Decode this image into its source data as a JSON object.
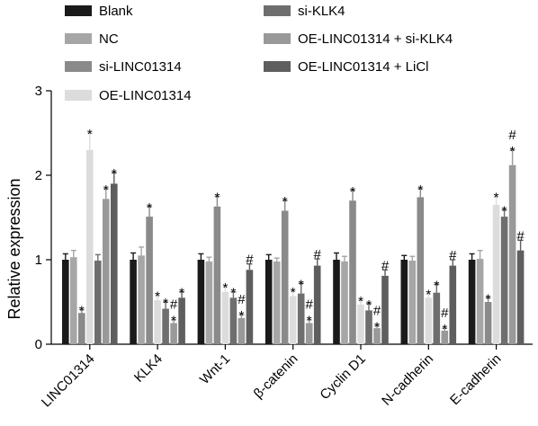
{
  "chart_data": {
    "type": "bar",
    "ylabel": "Relative expression",
    "ylim": [
      0,
      3
    ],
    "yticks": [
      "0",
      "1",
      "2",
      "3"
    ],
    "categories": [
      "LINC01314",
      "KLK4",
      "Wnt-1",
      "β-catenin",
      "Cyclin D1",
      "N-cadherin",
      "E-cadherin"
    ],
    "series": [
      {
        "name": "Blank",
        "color": "#1a1a1a",
        "values": [
          1.0,
          1.0,
          1.0,
          1.0,
          1.0,
          1.0,
          1.0
        ],
        "errors": [
          0.07,
          0.08,
          0.07,
          0.06,
          0.08,
          0.05,
          0.07
        ],
        "marks": [
          "",
          "",
          "",
          "",
          "",
          "",
          ""
        ]
      },
      {
        "name": "NC",
        "color": "#a6a6a6",
        "values": [
          1.03,
          1.05,
          0.98,
          0.98,
          0.98,
          0.99,
          1.01
        ],
        "errors": [
          0.08,
          0.1,
          0.05,
          0.04,
          0.06,
          0.05,
          0.1
        ],
        "marks": [
          "",
          "",
          "",
          "",
          "",
          "",
          ""
        ]
      },
      {
        "name": "si-LINC01314",
        "color": "#8a8a8a",
        "values": [
          0.37,
          1.51,
          1.63,
          1.58,
          1.7,
          1.74,
          0.5
        ],
        "errors": [
          0.04,
          0.12,
          0.12,
          0.12,
          0.12,
          0.1,
          0.05
        ],
        "marks": [
          "*",
          "*",
          "*",
          "*",
          "*",
          "*",
          "*"
        ]
      },
      {
        "name": "OE-LINC01314",
        "color": "#dcdcdc",
        "values": [
          2.3,
          0.52,
          0.62,
          0.57,
          0.47,
          0.55,
          1.65
        ],
        "errors": [
          0.2,
          0.06,
          0.06,
          0.06,
          0.05,
          0.05,
          0.1
        ],
        "marks": [
          "*",
          "*",
          "*",
          "*",
          "*",
          "*",
          "*"
        ]
      },
      {
        "name": "si-KLK4",
        "color": "#6e6e6e",
        "values": [
          0.99,
          0.42,
          0.55,
          0.6,
          0.4,
          0.61,
          1.51
        ],
        "errors": [
          0.07,
          0.08,
          0.07,
          0.12,
          0.08,
          0.1,
          0.08
        ],
        "marks": [
          "",
          "*",
          "*",
          "*",
          "*",
          "*",
          "*"
        ]
      },
      {
        "name": "OE-LINC01314 + si-KLK4",
        "color": "#999999",
        "values": [
          1.72,
          0.25,
          0.31,
          0.25,
          0.19,
          0.16,
          2.12
        ],
        "errors": [
          0.12,
          0.04,
          0.04,
          0.04,
          0.03,
          0.03,
          0.18
        ],
        "marks": [
          "*",
          "#*",
          "#*",
          "#*",
          "#*",
          "#*",
          "#*"
        ]
      },
      {
        "name": "OE-LINC01314 + LiCl",
        "color": "#5e5e5e",
        "values": [
          1.9,
          0.55,
          0.88,
          0.93,
          0.81,
          0.93,
          1.11
        ],
        "errors": [
          0.13,
          0.07,
          0.07,
          0.08,
          0.07,
          0.07,
          0.12
        ],
        "marks": [
          "*",
          "*",
          "#",
          "#",
          "#",
          "#",
          "#"
        ]
      }
    ]
  }
}
